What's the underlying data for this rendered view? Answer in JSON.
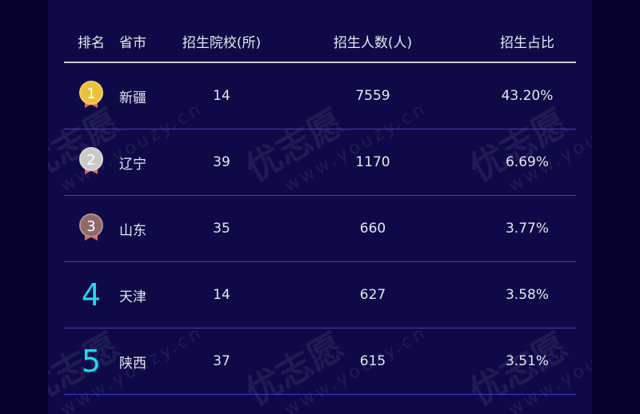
{
  "watermark": {
    "brand": "优志愿",
    "url": "www.youzy.cn"
  },
  "table": {
    "headers": [
      "排名",
      "省市",
      "招生院校(所)",
      "招生人数(人)",
      "招生占比"
    ],
    "rows": [
      {
        "rank": "1",
        "province": "新疆",
        "schools": "14",
        "students": "7559",
        "ratio": "43.20%",
        "medal": "gold"
      },
      {
        "rank": "2",
        "province": "辽宁",
        "schools": "39",
        "students": "1170",
        "ratio": "6.69%",
        "medal": "silver"
      },
      {
        "rank": "3",
        "province": "山东",
        "schools": "35",
        "students": "660",
        "ratio": "3.77%",
        "medal": "bronze"
      },
      {
        "rank": "4",
        "province": "天津",
        "schools": "14",
        "students": "627",
        "ratio": "3.58%"
      },
      {
        "rank": "5",
        "province": "陕西",
        "schools": "37",
        "students": "615",
        "ratio": "3.51%"
      }
    ]
  },
  "colors": {
    "gold": "#ecc13a",
    "silver": "#c9c9c9",
    "bronze": "#8e6b69",
    "rank_text": "#1fd9ee",
    "row_line": "#3b3fc8",
    "panel_bg": "#0f0a47"
  }
}
